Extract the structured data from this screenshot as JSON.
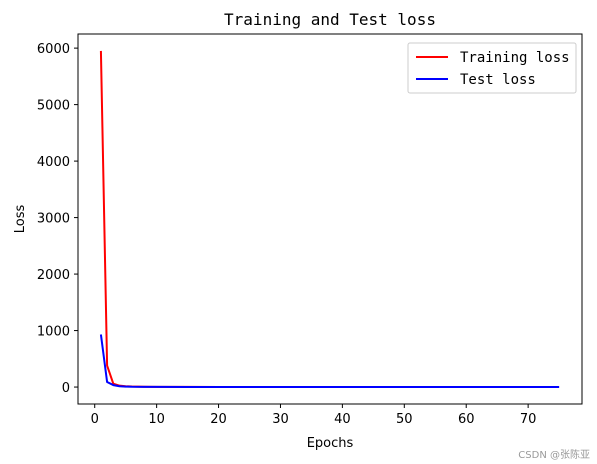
{
  "chart_data": {
    "type": "line",
    "title": "Training and Test loss",
    "xlabel": "Epochs",
    "ylabel": "Loss",
    "xlim": [
      -2.7,
      78.7
    ],
    "ylim": [
      -300,
      6250
    ],
    "xticks": [
      0,
      10,
      20,
      30,
      40,
      50,
      60,
      70
    ],
    "yticks": [
      0,
      1000,
      2000,
      3000,
      4000,
      5000,
      6000
    ],
    "grid": false,
    "legend_position": "top-right",
    "series": [
      {
        "name": "Training loss",
        "color": "#ff0000",
        "x": [
          1,
          2,
          3,
          4,
          5,
          6,
          8,
          10,
          15,
          20,
          30,
          40,
          50,
          60,
          70,
          75
        ],
        "y": [
          5950,
          380,
          60,
          25,
          15,
          10,
          6,
          4,
          3,
          2,
          2,
          2,
          1,
          1,
          1,
          1
        ]
      },
      {
        "name": "Test loss",
        "color": "#0000ff",
        "x": [
          1,
          2,
          3,
          4,
          5,
          6,
          8,
          10,
          15,
          20,
          30,
          40,
          50,
          60,
          70,
          75
        ],
        "y": [
          930,
          90,
          35,
          15,
          8,
          5,
          4,
          3,
          2,
          2,
          2,
          1,
          1,
          1,
          1,
          1
        ]
      }
    ]
  },
  "watermark": "CSDN @张陈亚"
}
